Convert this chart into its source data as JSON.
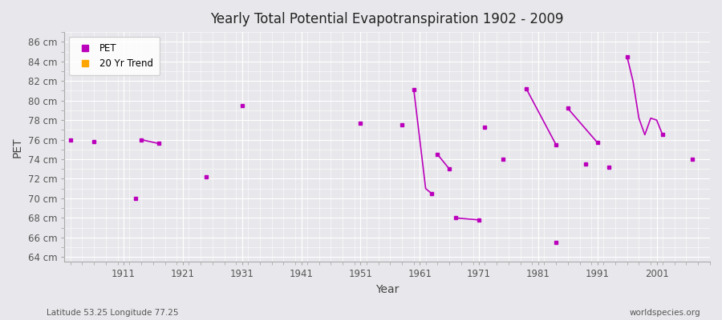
{
  "title": "Yearly Total Potential Evapotranspiration 1902 - 2009",
  "xlabel": "Year",
  "ylabel": "PET",
  "subtitle_left": "Latitude 53.25 Longitude 77.25",
  "subtitle_right": "worldspecies.org",
  "xlim": [
    1901,
    2010
  ],
  "ylim": [
    63.5,
    87
  ],
  "yticks": [
    64,
    66,
    68,
    70,
    72,
    74,
    76,
    78,
    80,
    82,
    84,
    86
  ],
  "ytick_labels": [
    "64 cm",
    "66 cm",
    "68 cm",
    "70 cm",
    "72 cm",
    "74 cm",
    "76 cm",
    "78 cm",
    "80 cm",
    "82 cm",
    "84 cm",
    "86 cm"
  ],
  "xticks": [
    1911,
    1921,
    1931,
    1941,
    1951,
    1961,
    1971,
    1981,
    1991,
    2001
  ],
  "plot_bg_color": "#e8e8ec",
  "fig_bg_color": "#e8e8ec",
  "grid_color": "#ffffff",
  "pet_color": "#bb00bb",
  "trend_color": "#ffa500",
  "pet_segments": [
    [
      [
        1902,
        76.0
      ]
    ],
    [
      [
        1906,
        75.8
      ]
    ],
    [
      [
        1914,
        76.0
      ],
      [
        1917,
        75.6
      ]
    ],
    [
      [
        1913,
        70.0
      ]
    ],
    [
      [
        1925,
        72.2
      ]
    ],
    [
      [
        1931,
        79.5
      ]
    ],
    [
      [
        1951,
        77.7
      ]
    ],
    [
      [
        1958,
        77.5
      ]
    ],
    [
      [
        1960,
        81.1
      ],
      [
        1962,
        71.0
      ],
      [
        1963,
        70.5
      ]
    ],
    [
      [
        1964,
        74.5
      ],
      [
        1966,
        73.0
      ]
    ],
    [
      [
        1967,
        68.0
      ],
      [
        1971,
        67.8
      ]
    ],
    [
      [
        1972,
        77.3
      ]
    ],
    [
      [
        1975,
        74.0
      ]
    ],
    [
      [
        1979,
        81.2
      ],
      [
        1984,
        75.5
      ]
    ],
    [
      [
        1984,
        65.5
      ]
    ],
    [
      [
        1986,
        79.2
      ],
      [
        1991,
        75.7
      ]
    ],
    [
      [
        1989,
        73.5
      ]
    ],
    [
      [
        1993,
        73.2
      ]
    ],
    [
      [
        1996,
        84.5
      ],
      [
        1997,
        82.0
      ],
      [
        1998,
        78.2
      ],
      [
        1999,
        76.5
      ],
      [
        2000,
        78.2
      ],
      [
        2001,
        78.0
      ],
      [
        2002,
        76.5
      ]
    ],
    [
      [
        2007,
        74.0
      ]
    ]
  ]
}
